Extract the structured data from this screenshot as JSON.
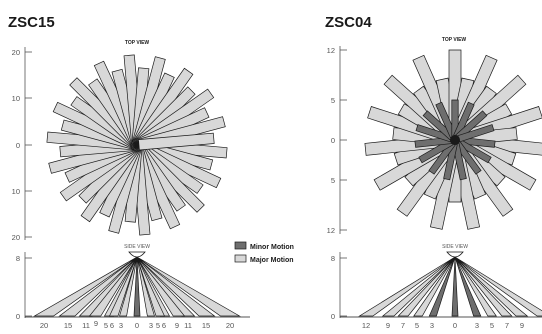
{
  "legend": {
    "minor_label": "Minor Motion",
    "major_label": "Major Motion",
    "minor_color": "#6e6e6e",
    "major_color": "#d8d8d8"
  },
  "panels": [
    {
      "id": "zsc15",
      "model": "ZSC15",
      "top_view_title": "TOP VIEW",
      "side_view_title": "SIDE VIEW",
      "top_axis_ticks": [
        "20",
        "10",
        "0",
        "10",
        "20"
      ],
      "side_axis_ticks": [
        "8",
        "0"
      ],
      "bottom_ticks": [
        "20",
        "15",
        "11",
        "9",
        "5",
        "6",
        "3",
        "0",
        "3",
        "5",
        "6",
        "9",
        "11",
        "15",
        "20"
      ],
      "top_range_max": 20,
      "major_beam_count": 36,
      "minor_beam_count": 0,
      "side_major_offsets": [
        20,
        15,
        11,
        9,
        6,
        5,
        3,
        -3,
        -5,
        -6,
        -9,
        -11,
        -15,
        -20
      ],
      "side_minor_offsets": [
        0
      ]
    },
    {
      "id": "zsc04",
      "model": "ZSC04",
      "top_view_title": "TOP VIEW",
      "side_view_title": "SIDE VIEW",
      "top_axis_ticks": [
        "12",
        "5",
        "0",
        "5",
        "12"
      ],
      "side_axis_ticks": [
        "8",
        "0"
      ],
      "bottom_ticks": [
        "12",
        "9",
        "7",
        "5",
        "3",
        "0",
        "3",
        "5",
        "7",
        "9"
      ],
      "top_range_max": 12,
      "major_beam_count": 30,
      "minor_beam_count": 15,
      "side_major_offsets": [
        12,
        9,
        7,
        5,
        -5,
        -7,
        -9,
        -12
      ],
      "side_minor_offsets": [
        3,
        0,
        -3
      ]
    }
  ]
}
